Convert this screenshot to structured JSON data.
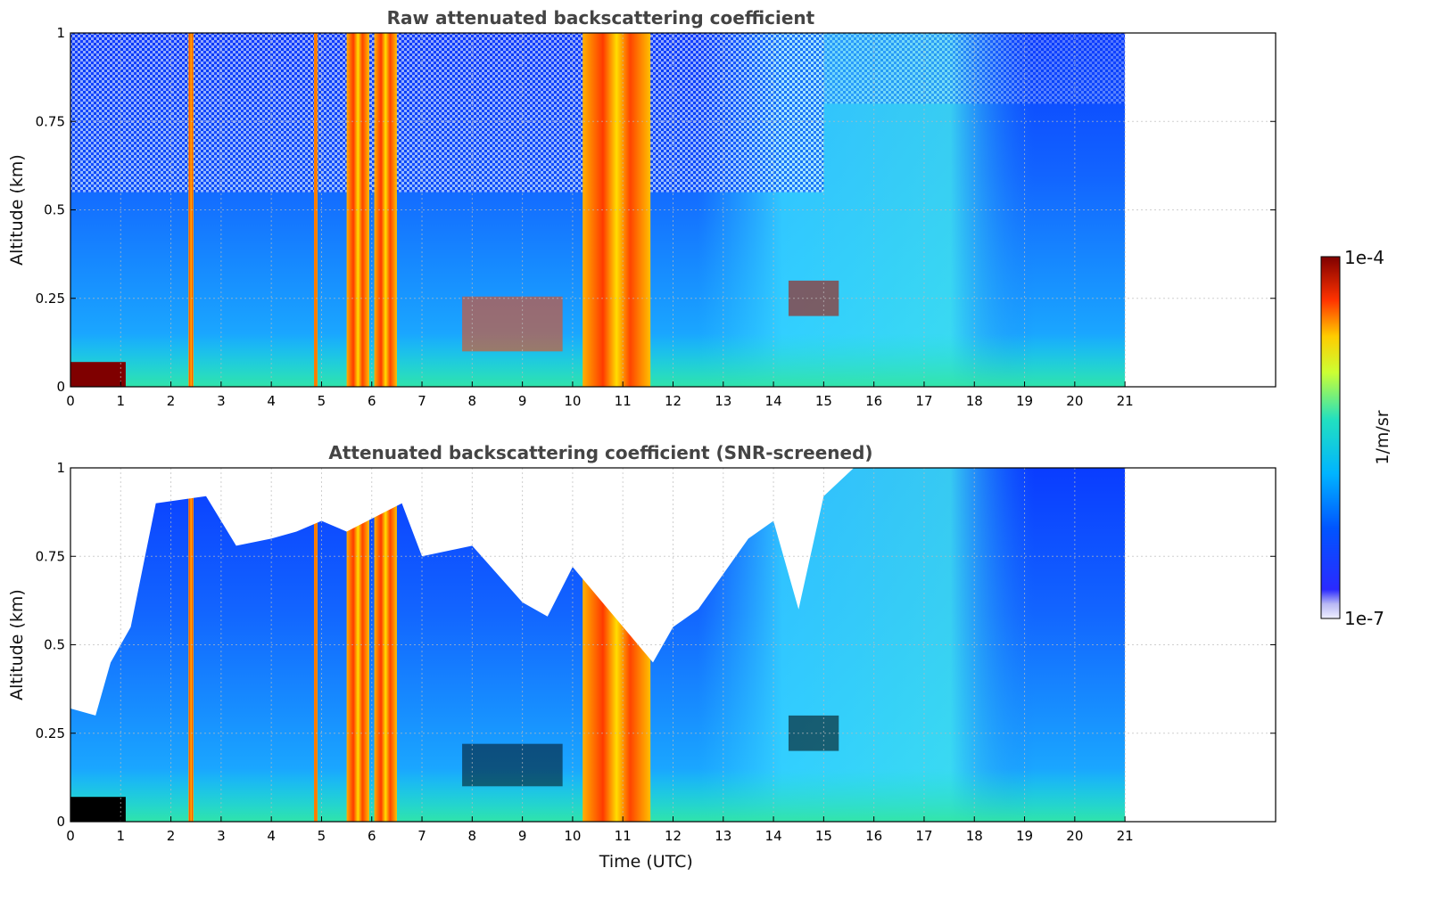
{
  "chart_data": [
    {
      "type": "heatmap",
      "title": "Raw attenuated backscattering coefficient",
      "xlabel": "",
      "ylabel": "Altitude (km)",
      "xlim": [
        0,
        24
      ],
      "ylim": [
        0,
        1
      ],
      "x_ticks": [
        "0",
        "1",
        "2",
        "3",
        "4",
        "5",
        "6",
        "7",
        "8",
        "9",
        "10",
        "11",
        "12",
        "13",
        "14",
        "15",
        "16",
        "17",
        "18",
        "19",
        "20",
        "21"
      ],
      "y_ticks": [
        "0",
        "0.25",
        "0.5",
        "0.75",
        "1"
      ],
      "grid": true,
      "data_extent_hours": [
        0,
        21
      ],
      "colorscale": "jet, log",
      "features": {
        "strong_columns_hours": [
          [
            2.35,
            2.45
          ],
          [
            4.85,
            4.92
          ],
          [
            5.5,
            5.95
          ],
          [
            6.05,
            6.5
          ],
          [
            10.2,
            11.55
          ]
        ],
        "aerosol_layer_km": [
          0.1,
          0.3
        ],
        "low_cloud_hours": [
          0,
          1.1
        ],
        "low_cloud_top_km": 0.07
      }
    },
    {
      "type": "heatmap",
      "title": "Attenuated backscattering coefficient (SNR-screened)",
      "xlabel": "Time (UTC)",
      "ylabel": "Altitude (km)",
      "xlim": [
        0,
        24
      ],
      "ylim": [
        0,
        1
      ],
      "x_ticks": [
        "0",
        "1",
        "2",
        "3",
        "4",
        "5",
        "6",
        "7",
        "8",
        "9",
        "10",
        "11",
        "12",
        "13",
        "14",
        "15",
        "16",
        "17",
        "18",
        "19",
        "20",
        "21"
      ],
      "y_ticks": [
        "0",
        "0.25",
        "0.5",
        "0.75",
        "1"
      ],
      "grid": true,
      "data_extent_hours": [
        0,
        21
      ],
      "colorscale": "jet, log",
      "screened_top_km": [
        [
          0,
          0.32
        ],
        [
          0.5,
          0.3
        ],
        [
          0.8,
          0.45
        ],
        [
          1.2,
          0.55
        ],
        [
          1.7,
          0.9
        ],
        [
          2.7,
          0.92
        ],
        [
          3.3,
          0.78
        ],
        [
          4.0,
          0.8
        ],
        [
          4.5,
          0.82
        ],
        [
          5.0,
          0.85
        ],
        [
          5.5,
          0.82
        ],
        [
          6.6,
          0.9
        ],
        [
          7.0,
          0.75
        ],
        [
          8.0,
          0.78
        ],
        [
          9.0,
          0.62
        ],
        [
          9.5,
          0.58
        ],
        [
          10.0,
          0.72
        ],
        [
          11.6,
          0.45
        ],
        [
          12.0,
          0.55
        ],
        [
          12.5,
          0.6
        ],
        [
          13.0,
          0.7
        ],
        [
          13.5,
          0.8
        ],
        [
          14.0,
          0.85
        ],
        [
          14.5,
          0.6
        ],
        [
          15.0,
          0.92
        ],
        [
          15.6,
          1.0
        ],
        [
          21.0,
          1.0
        ]
      ]
    }
  ],
  "colorbar": {
    "label": "1/m/sr",
    "max_label": "1e-4",
    "min_label": "1e-7"
  }
}
